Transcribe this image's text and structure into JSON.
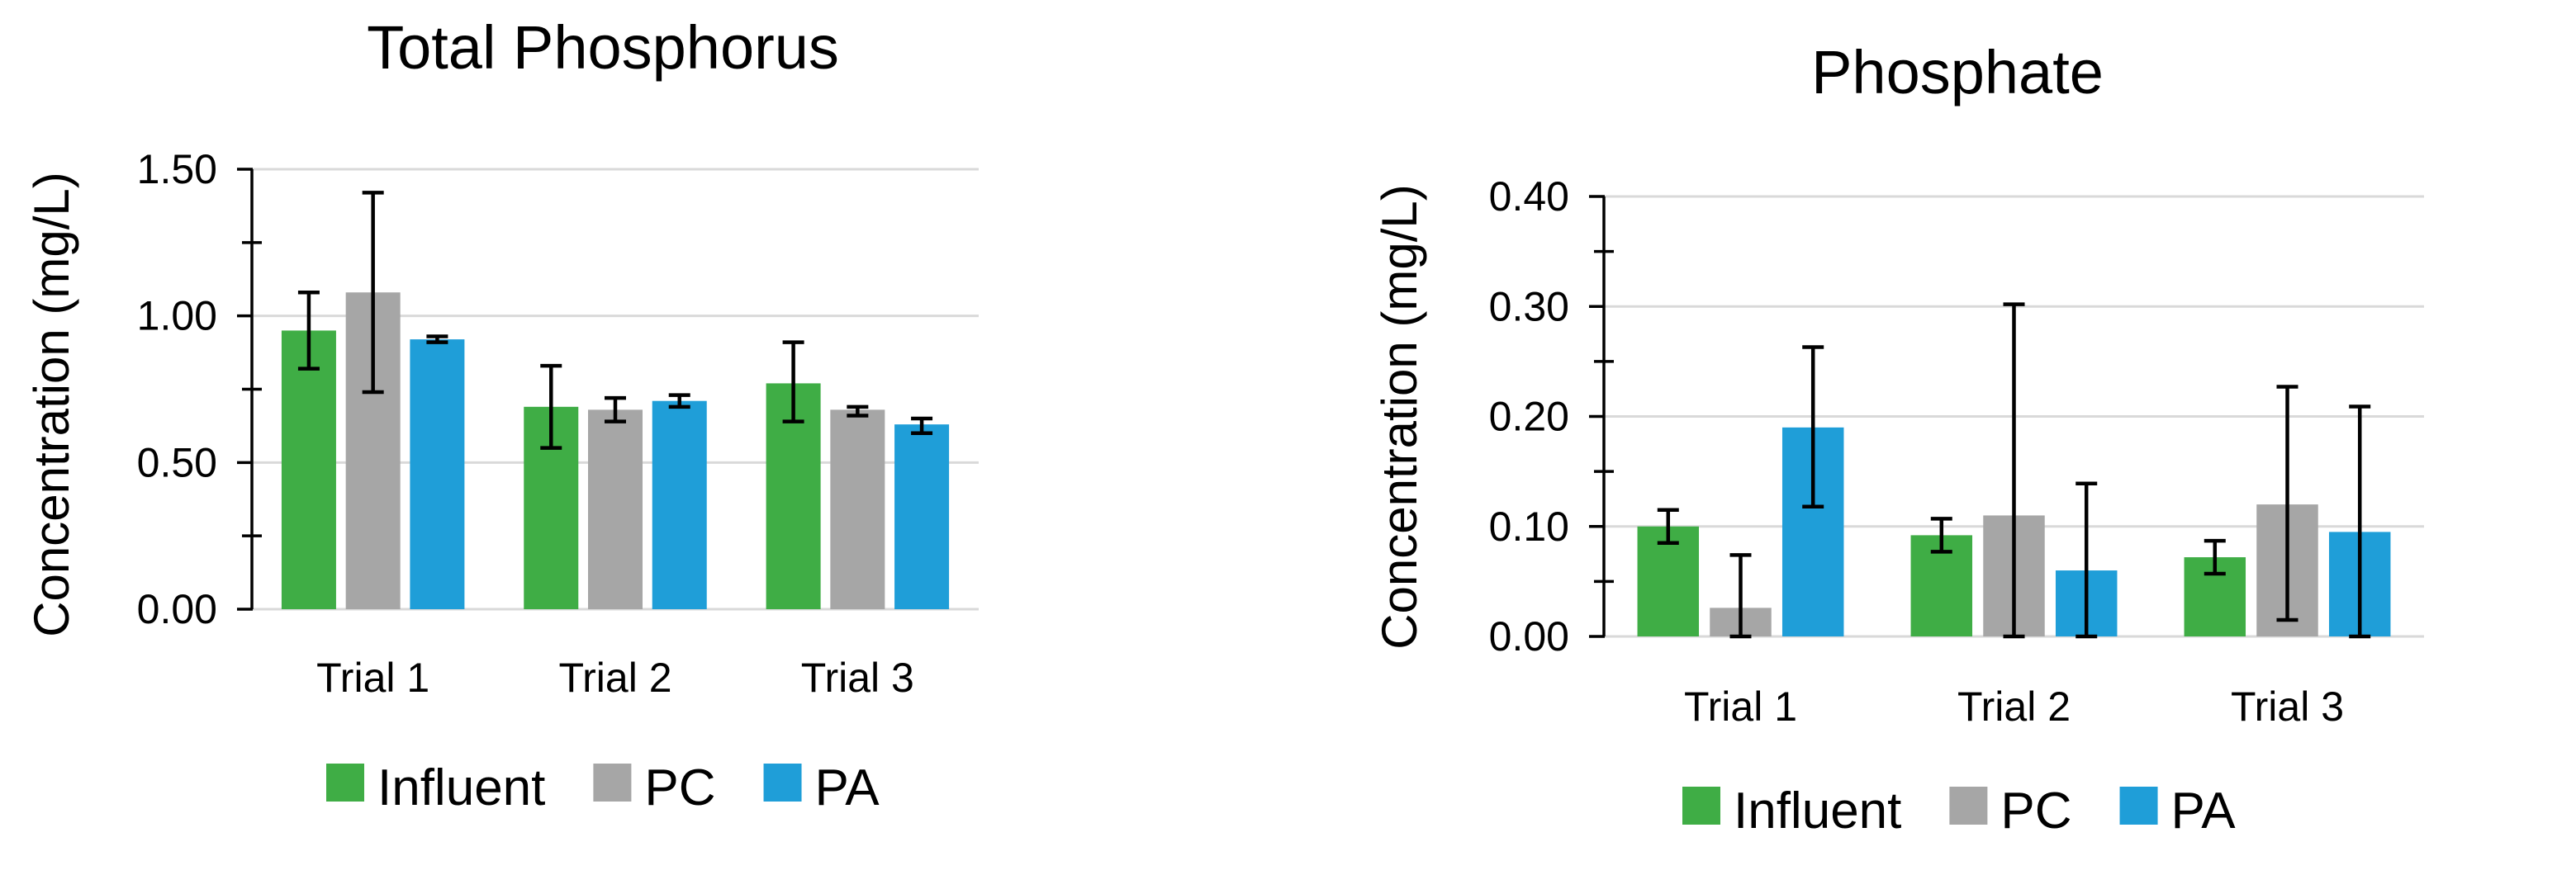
{
  "colors": {
    "influent": "#3fad45",
    "pc": "#a6a6a6",
    "pa": "#1f9ed8",
    "grid": "#d9d9d9",
    "axis": "#000000"
  },
  "chart_data": [
    {
      "type": "bar",
      "title": "Total Phosphorus",
      "xlabel": "",
      "ylabel": "Concentration (mg/L)",
      "ylim": [
        0,
        1.5
      ],
      "yticks": [
        "0.00",
        "0.50",
        "1.00",
        "1.50"
      ],
      "ytick_values": [
        0,
        0.5,
        1.0,
        1.5
      ],
      "grid": true,
      "legend": "bottom",
      "categories": [
        "Trial 1",
        "Trial 2",
        "Trial 3"
      ],
      "series": [
        {
          "name": "Influent",
          "color_key": "influent",
          "values": [
            0.95,
            0.69,
            0.77
          ],
          "err_low": [
            0.82,
            0.55,
            0.64
          ],
          "err_high": [
            1.08,
            0.83,
            0.91
          ]
        },
        {
          "name": "PC",
          "color_key": "pc",
          "values": [
            1.08,
            0.68,
            0.68
          ],
          "err_low": [
            0.74,
            0.64,
            0.66
          ],
          "err_high": [
            1.42,
            0.72,
            0.69
          ]
        },
        {
          "name": "PA",
          "color_key": "pa",
          "values": [
            0.92,
            0.71,
            0.63
          ],
          "err_low": [
            0.91,
            0.69,
            0.6
          ],
          "err_high": [
            0.93,
            0.73,
            0.65
          ]
        }
      ]
    },
    {
      "type": "bar",
      "title": "Phosphate",
      "xlabel": "",
      "ylabel": "Concentration (mg/L)",
      "ylim": [
        0,
        0.4
      ],
      "yticks": [
        "0.00",
        "0.10",
        "0.20",
        "0.30",
        "0.40"
      ],
      "ytick_values": [
        0,
        0.1,
        0.2,
        0.3,
        0.4
      ],
      "grid": true,
      "legend": "bottom",
      "categories": [
        "Trial 1",
        "Trial 2",
        "Trial 3"
      ],
      "series": [
        {
          "name": "Influent",
          "color_key": "influent",
          "values": [
            0.1,
            0.092,
            0.072
          ],
          "err_low": [
            0.085,
            0.077,
            0.057
          ],
          "err_high": [
            0.115,
            0.107,
            0.087
          ]
        },
        {
          "name": "PC",
          "color_key": "pc",
          "values": [
            0.026,
            0.11,
            0.12
          ],
          "err_low": [
            0.0,
            0.0,
            0.015
          ],
          "err_high": [
            0.074,
            0.302,
            0.227
          ]
        },
        {
          "name": "PA",
          "color_key": "pa",
          "values": [
            0.19,
            0.06,
            0.095
          ],
          "err_low": [
            0.118,
            0.0,
            0.0
          ],
          "err_high": [
            0.263,
            0.139,
            0.209
          ]
        }
      ]
    }
  ]
}
